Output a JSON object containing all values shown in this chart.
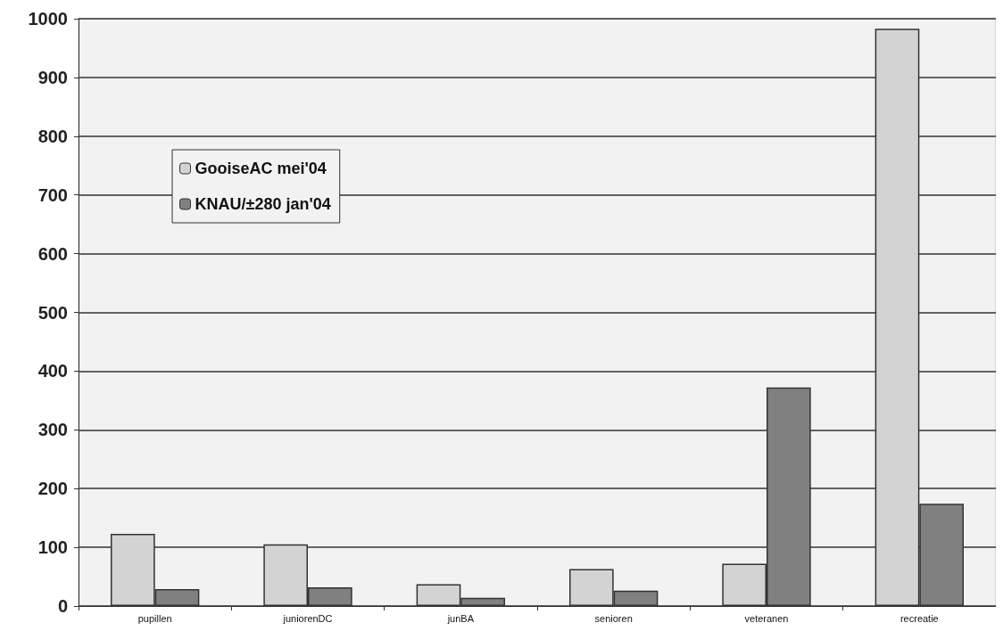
{
  "chart_data": {
    "type": "bar",
    "categories": [
      "pupillen",
      "juniorenDC",
      "junBA",
      "senioren",
      "veteranen",
      "recreatie"
    ],
    "series": [
      {
        "name": "GooiseAC mei'04",
        "color": "#d3d3d3",
        "values": [
          123,
          105,
          37,
          63,
          72,
          983
        ]
      },
      {
        "name": "KNAU/±280 jan'04",
        "color": "#808080",
        "values": [
          29,
          32,
          14,
          26,
          372,
          174
        ]
      }
    ],
    "ylim": [
      0,
      1000
    ],
    "yticks": [
      0,
      100,
      200,
      300,
      400,
      500,
      600,
      700,
      800,
      900,
      1000
    ],
    "grid": "y",
    "legend": "top left"
  }
}
